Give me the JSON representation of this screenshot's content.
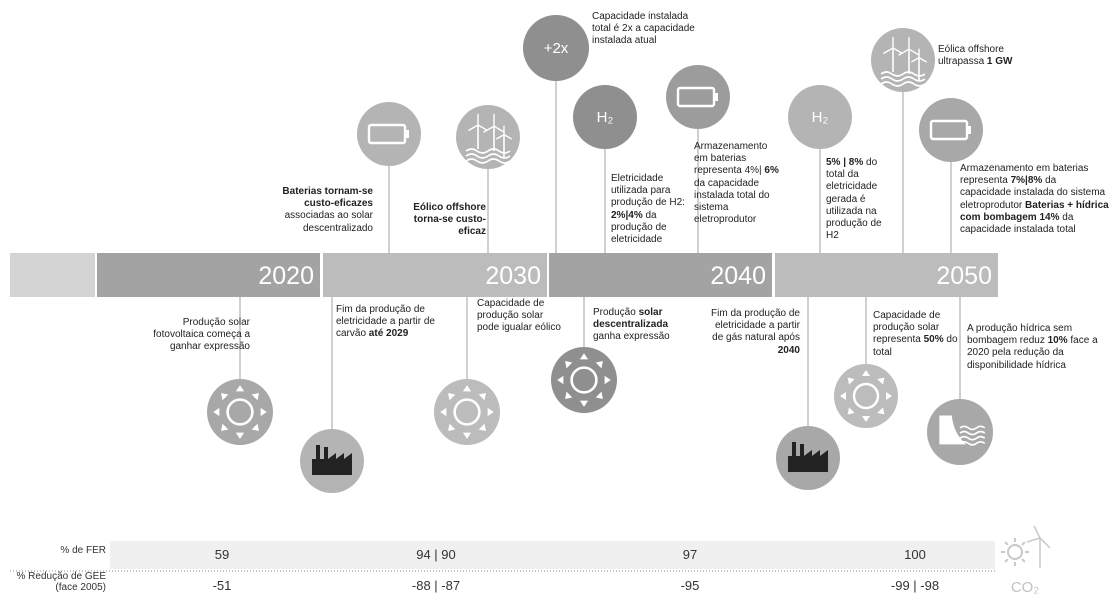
{
  "timeline": {
    "years": [
      "2020",
      "2030",
      "2040",
      "2050"
    ]
  },
  "top_events": [
    {
      "icon": "battery",
      "parts": [
        {
          "text": "Baterias tornam-se custo-eficazes",
          "bold": true
        },
        {
          "text": " associadas ao solar descentralizado",
          "bold": false
        }
      ]
    },
    {
      "icon": "wind",
      "parts": [
        {
          "text": "Eólico offshore torna-se custo-eficaz",
          "bold": true
        }
      ]
    },
    {
      "icon": "text",
      "icon_text": "+2x",
      "parts": [
        {
          "text": "Capacidade instalada total é 2x a capacidade instalada atual",
          "bold": false
        }
      ]
    },
    {
      "icon": "text",
      "icon_text": "H₂",
      "parts": [
        {
          "text": "Eletricidade utilizada para produção de H2: ",
          "bold": false
        },
        {
          "text": "2%|4%",
          "bold": true
        },
        {
          "text": " da produção de eletricidade",
          "bold": false
        }
      ]
    },
    {
      "icon": "battery",
      "parts": [
        {
          "text": "Armazenamento em baterias representa 4%| ",
          "bold": false
        },
        {
          "text": "6%",
          "bold": true
        },
        {
          "text": " da capacidade instalada total do sistema eletroprodutor",
          "bold": false
        }
      ]
    },
    {
      "icon": "text",
      "icon_text": "H₂",
      "parts": [
        {
          "text": "5% | 8%",
          "bold": true
        },
        {
          "text": " do total da eletricidade gerada é utilizada na produção de H2",
          "bold": false
        }
      ]
    },
    {
      "icon": "wind",
      "parts": [
        {
          "text": "Eólica offshore ultrapassa ",
          "bold": false
        },
        {
          "text": "1 GW",
          "bold": true
        }
      ]
    },
    {
      "icon": "battery",
      "parts": [
        {
          "text": "Armazenamento em baterias representa ",
          "bold": false
        },
        {
          "text": "7%|8%",
          "bold": true
        },
        {
          "text": " da capacidade instalada do sistema eletroprodutor ",
          "bold": false
        },
        {
          "text": "Baterias + hídrica com bombagem 14%",
          "bold": true
        },
        {
          "text": " da capacidade instalada total",
          "bold": false
        }
      ]
    }
  ],
  "bottom_events": [
    {
      "icon": "sun",
      "parts": [
        {
          "text": "Produção solar fotovoltaica começa a ganhar expressão",
          "bold": false
        }
      ]
    },
    {
      "icon": "factory",
      "parts": [
        {
          "text": "Fim da produção de eletricidade a partir de carvão ",
          "bold": false
        },
        {
          "text": "até 2029",
          "bold": true
        }
      ]
    },
    {
      "icon": "sun",
      "parts": [
        {
          "text": "Capacidade de produção solar pode igualar eólico",
          "bold": false
        }
      ]
    },
    {
      "icon": "sun",
      "parts": [
        {
          "text": "Produção ",
          "bold": false
        },
        {
          "text": "solar descentralizada",
          "bold": true
        },
        {
          "text": " ganha expressão",
          "bold": false
        }
      ]
    },
    {
      "icon": "factory",
      "parts": [
        {
          "text": "Fim da produção de eletricidade a partir de gás natural após ",
          "bold": false
        },
        {
          "text": "2040",
          "bold": true
        }
      ]
    },
    {
      "icon": "sun",
      "parts": [
        {
          "text": "Capacidade de produção solar representa ",
          "bold": false
        },
        {
          "text": "50%",
          "bold": true
        },
        {
          "text": " do total",
          "bold": false
        }
      ]
    },
    {
      "icon": "dam",
      "parts": [
        {
          "text": "A produção hídrica sem bombagem reduz ",
          "bold": false
        },
        {
          "text": "10%",
          "bold": true
        },
        {
          "text": " face a 2020 pela redução da disponibilidade hídrica",
          "bold": false
        }
      ]
    }
  ],
  "table": {
    "rows": [
      {
        "label": "% de FER",
        "values": [
          "59",
          "94 | 90",
          "97",
          "100"
        ]
      },
      {
        "label": "% Redução de GEE (face 2005)",
        "values": [
          "-51",
          "-88 | -87",
          "-95",
          "-99 | -98"
        ]
      }
    ]
  },
  "co2_label": "CO₂"
}
